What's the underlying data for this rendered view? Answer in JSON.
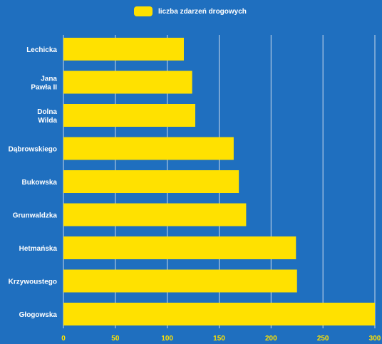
{
  "colors": {
    "background": "#1f6fbf",
    "bar": "#ffe100",
    "gridline": "#c9d9ea",
    "category_text": "#ffffff",
    "tick_text": "#ffe100"
  },
  "chart_data": {
    "type": "bar",
    "orientation": "horizontal",
    "categories": [
      [
        "Lechicka"
      ],
      [
        "Jana",
        "Pawła II"
      ],
      [
        "Dolna",
        "Wilda"
      ],
      [
        "Dąbrowskiego"
      ],
      [
        "Bukowska"
      ],
      [
        "Grunwaldzka"
      ],
      [
        "Hetmańska"
      ],
      [
        "Krzywoustego"
      ],
      [
        "Głogowska"
      ]
    ],
    "series": [
      {
        "name": "liczba zdarzeń drogowych",
        "values": [
          116,
          124,
          127,
          164,
          169,
          176,
          224,
          225,
          300
        ]
      }
    ],
    "xlim": [
      0,
      300
    ],
    "xticks": [
      0,
      50,
      100,
      150,
      200,
      250,
      300
    ],
    "grid": "vertical",
    "legend_position": "top-center"
  }
}
